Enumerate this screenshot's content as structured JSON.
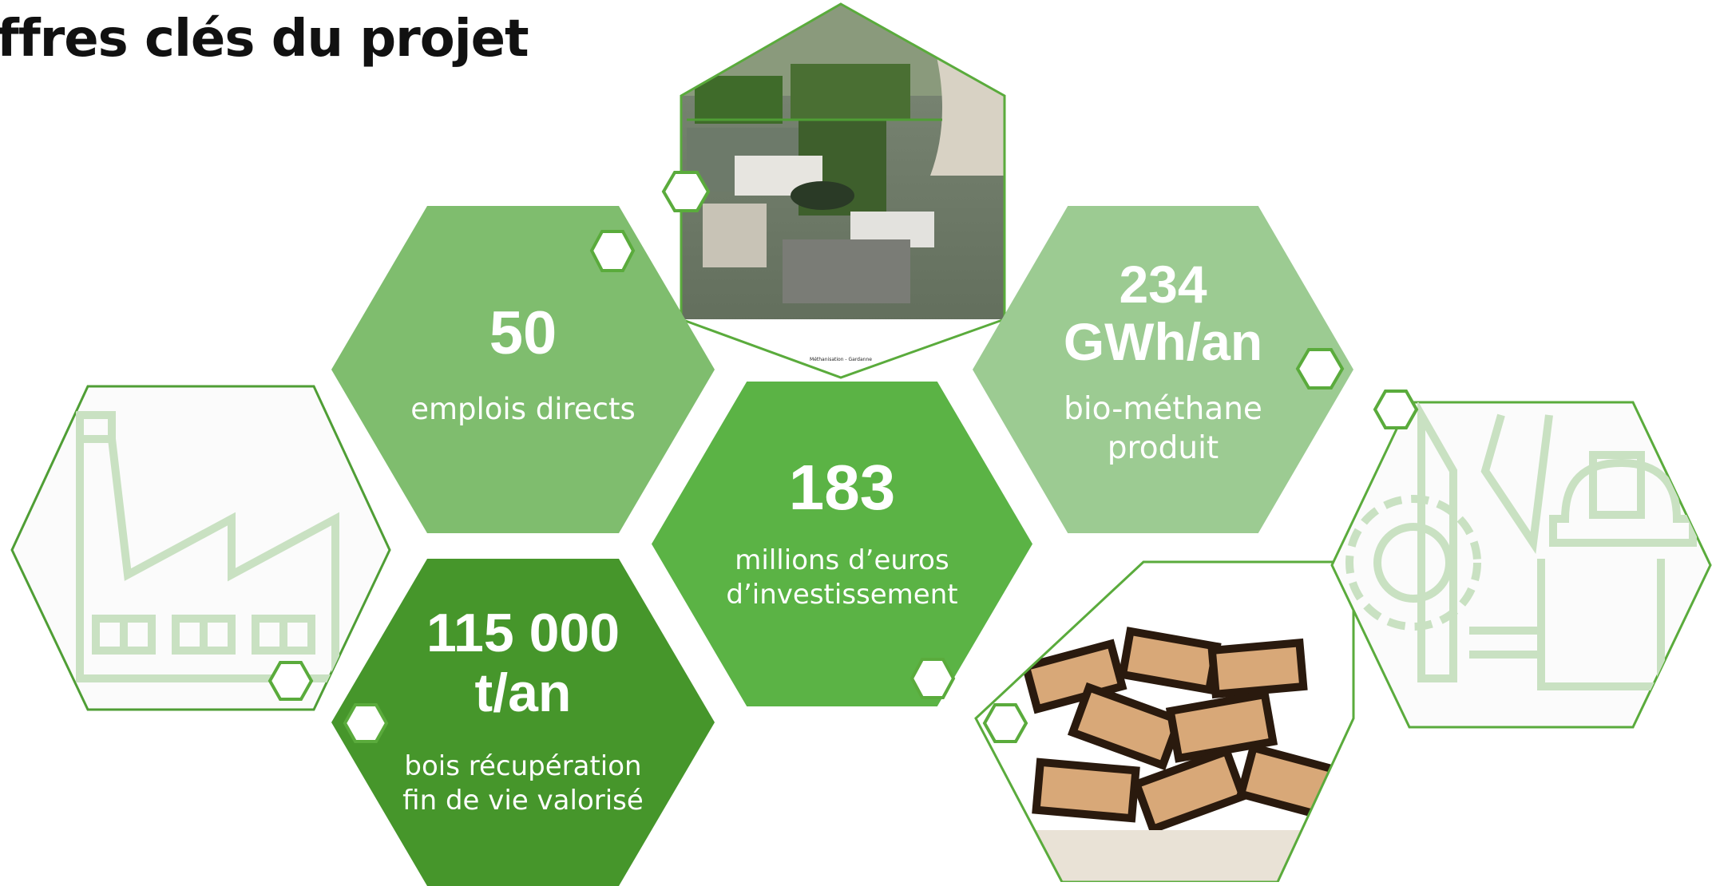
{
  "page": {
    "title": "ffres clés du projet"
  },
  "colors": {
    "accent": "#5aab3c",
    "hex_emplois": "#7fbd6e",
    "hex_investissement": "#5bb345",
    "hex_biomethane": "#9ccb92",
    "hex_bois": "#46962b",
    "outline": "#4f9e35",
    "icon_pale": "#c9e1c2"
  },
  "stats": {
    "emplois": {
      "value": "50",
      "label": "emplois directs"
    },
    "investissement": {
      "value": "183",
      "label": "millions d’euros d’investissement"
    },
    "biomethane": {
      "value": "234 GWh/an",
      "label": "bio-méthane produit"
    },
    "bois": {
      "value": "115 000 t/an",
      "label": "bois récupération fin de vie valorisé"
    }
  },
  "images": {
    "plant_caption": "Méthanisation - Gardanne",
    "factory_icon": "factory-icon",
    "worker_icon": "worker-safety-icon",
    "wood_pile": "wood-pile-image"
  }
}
